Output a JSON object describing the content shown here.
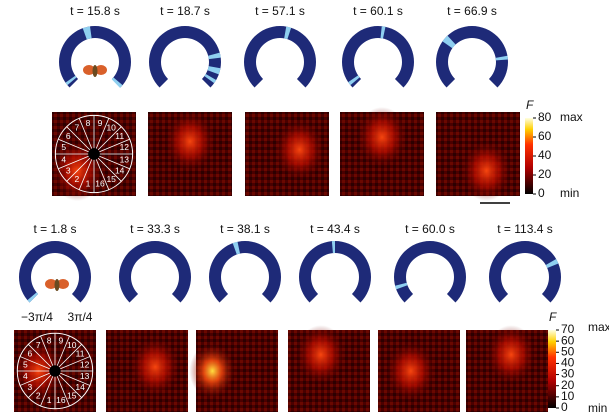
{
  "top": {
    "times": [
      "t = 15.8 s",
      "t = 18.7 s",
      "t = 57.1 s",
      "t = 60.1 s",
      "t = 66.9 s"
    ],
    "colorbar": {
      "label": "F",
      "ticks": [
        80,
        60,
        40,
        20,
        0
      ],
      "max": "max",
      "min": "min"
    }
  },
  "bottom": {
    "times": [
      "t = 1.8 s",
      "t = 33.3 s",
      "t = 38.1 s",
      "t = 43.4 s",
      "t = 60.0 s",
      "t = 113.4 s"
    ],
    "angle_labels": [
      "−3π/4",
      "3π/4"
    ],
    "colorbar": {
      "label": "F",
      "ticks": [
        70,
        60,
        50,
        40,
        30,
        20,
        10,
        0
      ],
      "max": "max",
      "min": "min"
    }
  },
  "wedge_numbers": [
    1,
    2,
    3,
    4,
    5,
    6,
    7,
    8,
    9,
    10,
    11,
    12,
    13,
    14,
    15,
    16
  ]
}
